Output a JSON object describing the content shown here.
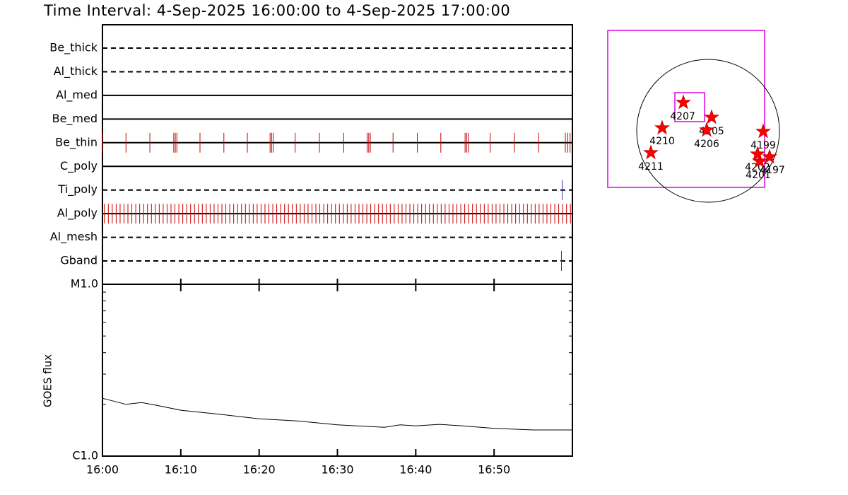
{
  "title": "Time Interval:  4-Sep-2025 16:00:00 to  4-Sep-2025 17:00:00",
  "chart_data": [
    {
      "type": "events",
      "xlim": [
        0,
        60
      ],
      "series": [
        {
          "name": "Be_thick",
          "line": "dashed",
          "color": "#cc0000",
          "values": []
        },
        {
          "name": "Al_thick",
          "line": "dashed",
          "color": "#cc0000",
          "values": []
        },
        {
          "name": "Al_med",
          "line": "solid",
          "color": "#cc0000",
          "values": []
        },
        {
          "name": "Be_med",
          "line": "solid",
          "color": "#cc0000",
          "values": []
        },
        {
          "name": "Be_thin",
          "line": "solid",
          "color": "#cc0000",
          "values": [
            0,
            3,
            6.05,
            9.1,
            9.3,
            9.5,
            12.45,
            15.5,
            18.5,
            21.4,
            21.6,
            21.8,
            24.6,
            27.7,
            30.8,
            33.8,
            34,
            34.2,
            37.1,
            40.2,
            43.2,
            46.3,
            46.5,
            46.7,
            49.5,
            52.6,
            55.7,
            59.1,
            59.4,
            59.7
          ]
        },
        {
          "name": "C_poly",
          "line": "solid",
          "color": "#cc0000",
          "values": []
        },
        {
          "name": "Ti_poly",
          "line": "dashed",
          "color": "#3333aa",
          "values": [
            58.7
          ]
        },
        {
          "name": "Al_poly",
          "line": "solid",
          "color": "#cc0000",
          "values": [
            0.25,
            0.75,
            1.25,
            1.75,
            2.25,
            2.75,
            3.25,
            3.75,
            4.25,
            4.75,
            5.25,
            5.75,
            6.25,
            6.75,
            7.25,
            7.75,
            8.25,
            8.75,
            9.25,
            9.75,
            10.25,
            10.75,
            11.25,
            11.75,
            12.25,
            12.75,
            13.25,
            13.75,
            14.25,
            14.75,
            15.25,
            15.75,
            16.25,
            16.75,
            17.25,
            17.75,
            18.25,
            18.75,
            19.25,
            19.75,
            20.25,
            20.75,
            21.25,
            21.75,
            22.25,
            22.75,
            23.25,
            23.75,
            24.25,
            24.75,
            25.25,
            25.75,
            26.25,
            26.75,
            27.25,
            27.75,
            28.25,
            28.75,
            29.25,
            29.75,
            30.25,
            30.75,
            31.25,
            31.75,
            32.25,
            32.75,
            33.25,
            33.75,
            34.25,
            34.75,
            35.25,
            35.75,
            36.25,
            36.75,
            37.25,
            37.75,
            38.25,
            38.75,
            39.25,
            39.75,
            40.25,
            40.75,
            41.25,
            41.75,
            42.25,
            42.75,
            43.25,
            43.75,
            44.25,
            44.75,
            45.25,
            45.75,
            46.25,
            46.75,
            47.25,
            47.75,
            48.25,
            48.75,
            49.25,
            49.75,
            50.25,
            50.75,
            51.25,
            51.75,
            52.25,
            52.75,
            53.25,
            53.75,
            54.25,
            54.75,
            55.25,
            55.75,
            56.25,
            56.75,
            57.25,
            57.75,
            58.25,
            58.75,
            59.25,
            59.75
          ]
        },
        {
          "name": "Al_mesh",
          "line": "dashed",
          "color": "#cc0000",
          "values": []
        },
        {
          "name": "Gband",
          "line": "dashed",
          "color": "#cc0000",
          "values": [
            58.6
          ]
        }
      ]
    },
    {
      "type": "line",
      "ylabel": "GOES flux",
      "log_scale": true,
      "color": "#000000",
      "xlim": [
        0,
        60
      ],
      "ylim": [
        1e-06,
        1e-05
      ],
      "xticks": [
        {
          "value": 0,
          "label": "16:00"
        },
        {
          "value": 10,
          "label": "16:10"
        },
        {
          "value": 20,
          "label": "16:20"
        },
        {
          "value": 30,
          "label": "16:30"
        },
        {
          "value": 40,
          "label": "16:40"
        },
        {
          "value": 50,
          "label": "16:50"
        }
      ],
      "yticks": [
        {
          "value": 1e-06,
          "label": "C1.0"
        },
        {
          "value": 1e-05,
          "label": "M1.0"
        }
      ],
      "x": [
        0,
        3,
        5,
        7,
        10,
        15,
        20,
        25,
        30,
        36,
        38,
        40,
        43,
        46,
        50,
        55,
        60
      ],
      "values": [
        2.17e-06,
        2e-06,
        2.05e-06,
        1.97e-06,
        1.85e-06,
        1.75e-06,
        1.65e-06,
        1.6e-06,
        1.52e-06,
        1.47e-06,
        1.52e-06,
        1.5e-06,
        1.53e-06,
        1.5e-06,
        1.45e-06,
        1.42e-06,
        1.42e-06
      ]
    }
  ],
  "map": {
    "regions": [
      "4207",
      "4205",
      "4206",
      "4210",
      "4211",
      "4199",
      "4202",
      "4201",
      "4197"
    ]
  }
}
